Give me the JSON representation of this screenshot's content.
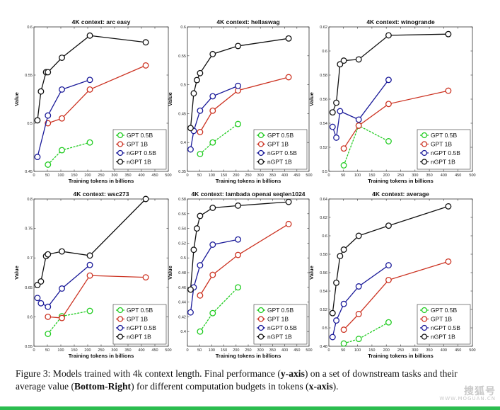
{
  "figure": {
    "caption_parts": [
      {
        "text": "Figure 3:  Models trained with 4k context length. Final performance (",
        "bold": false
      },
      {
        "text": "y-axis",
        "bold": true
      },
      {
        "text": ") on a set of downstream tasks and their average value (",
        "bold": false
      },
      {
        "text": "Bottom-Right",
        "bold": true
      },
      {
        "text": ") for different computation budgets in tokens (",
        "bold": false
      },
      {
        "text": "x-axis",
        "bold": true
      },
      {
        "text": ").",
        "bold": false
      }
    ],
    "watermark": {
      "main": "搜狐号",
      "sub": "WWW.MOGUAN.CN"
    },
    "accent_bar_color": "#2bbd4f"
  },
  "chart_data": [
    {
      "type": "line",
      "title": "4K context:  arc easy",
      "xlabel": "Training tokens in billions",
      "ylabel": "Value",
      "xlim": [
        0,
        500
      ],
      "ylim": [
        0.45,
        0.6
      ],
      "xticks": [
        0,
        50,
        100,
        150,
        200,
        250,
        300,
        350,
        400,
        450,
        500
      ],
      "xtick_labels": [
        "0",
        "50",
        "100",
        "150",
        "200",
        "250",
        "300",
        "350",
        "400",
        "450",
        "500"
      ],
      "yticks": [
        0.45,
        0.5,
        0.55,
        0.6
      ],
      "ytick_labels": [
        "0.45",
        "0.5",
        "0.55",
        "0.6"
      ],
      "legend_position": "bottom-right",
      "series": [
        {
          "name": "GPT 0.5B",
          "color": "#22cc22",
          "dashed": true,
          "x": [
            52,
            104,
            208
          ],
          "y": [
            0.457,
            0.472,
            0.48
          ]
        },
        {
          "name": "GPT 1B",
          "color": "#cc3322",
          "dashed": false,
          "x": [
            52,
            104,
            208,
            416
          ],
          "y": [
            0.5,
            0.505,
            0.535,
            0.56
          ]
        },
        {
          "name": "nGPT 0.5B",
          "color": "#1a1a99",
          "dashed": false,
          "x": [
            13,
            52,
            104,
            208
          ],
          "y": [
            0.465,
            0.508,
            0.535,
            0.545
          ]
        },
        {
          "name": "nGPT 1B",
          "color": "#111111",
          "dashed": false,
          "x": [
            13,
            26,
            45,
            52,
            104,
            208,
            416
          ],
          "y": [
            0.503,
            0.533,
            0.553,
            0.553,
            0.568,
            0.591,
            0.584
          ]
        }
      ]
    },
    {
      "type": "line",
      "title": "4K context:  hellaswag",
      "xlabel": "Training tokens in billions",
      "ylabel": "Value",
      "xlim": [
        0,
        500
      ],
      "ylim": [
        0.35,
        0.6
      ],
      "xticks": [
        0,
        50,
        100,
        150,
        200,
        250,
        300,
        350,
        400,
        450,
        500
      ],
      "xtick_labels": [
        "0",
        "50",
        "100",
        "150",
        "200",
        "250",
        "300",
        "350",
        "400",
        "450",
        "500"
      ],
      "yticks": [
        0.35,
        0.4,
        0.45,
        0.5,
        0.55,
        0.6
      ],
      "ytick_labels": [
        "0.35",
        "0.4",
        "0.45",
        "0.5",
        "0.55",
        "0.6"
      ],
      "legend_position": "bottom-right",
      "series": [
        {
          "name": "GPT 0.5B",
          "color": "#22cc22",
          "dashed": true,
          "x": [
            52,
            104,
            208
          ],
          "y": [
            0.38,
            0.4,
            0.432
          ]
        },
        {
          "name": "GPT 1B",
          "color": "#cc3322",
          "dashed": false,
          "x": [
            52,
            104,
            208,
            416
          ],
          "y": [
            0.418,
            0.455,
            0.49,
            0.513
          ]
        },
        {
          "name": "nGPT 0.5B",
          "color": "#1a1a99",
          "dashed": false,
          "x": [
            13,
            26,
            52,
            104,
            208
          ],
          "y": [
            0.388,
            0.42,
            0.455,
            0.48,
            0.498
          ]
        },
        {
          "name": "nGPT 1B",
          "color": "#111111",
          "dashed": false,
          "x": [
            13,
            26,
            39,
            52,
            104,
            208,
            416
          ],
          "y": [
            0.425,
            0.485,
            0.508,
            0.52,
            0.553,
            0.567,
            0.58
          ]
        }
      ]
    },
    {
      "type": "line",
      "title": "4K context:  winogrande",
      "xlabel": "Training tokens in billions",
      "ylabel": "Value",
      "xlim": [
        0,
        500
      ],
      "ylim": [
        0.5,
        0.62
      ],
      "xticks": [
        0,
        50,
        100,
        150,
        200,
        250,
        300,
        350,
        400,
        450,
        500
      ],
      "xtick_labels": [
        "0",
        "50",
        "100",
        "150",
        "200",
        "250",
        "300",
        "350",
        "400",
        "450",
        "500"
      ],
      "yticks": [
        0.5,
        0.52,
        0.54,
        0.56,
        0.58,
        0.6,
        0.62
      ],
      "ytick_labels": [
        "0.5",
        "0.52",
        "0.54",
        "0.56",
        "0.58",
        "0.6",
        "0.62"
      ],
      "legend_position": "bottom-right",
      "series": [
        {
          "name": "GPT 0.5B",
          "color": "#22cc22",
          "dashed": true,
          "x": [
            52,
            104,
            208
          ],
          "y": [
            0.505,
            0.538,
            0.525
          ]
        },
        {
          "name": "GPT 1B",
          "color": "#cc3322",
          "dashed": false,
          "x": [
            52,
            104,
            208,
            416
          ],
          "y": [
            0.519,
            0.538,
            0.556,
            0.567
          ]
        },
        {
          "name": "nGPT 0.5B",
          "color": "#1a1a99",
          "dashed": false,
          "x": [
            13,
            26,
            39,
            104,
            208
          ],
          "y": [
            0.537,
            0.528,
            0.55,
            0.543,
            0.576
          ]
        },
        {
          "name": "nGPT 1B",
          "color": "#111111",
          "dashed": false,
          "x": [
            13,
            26,
            39,
            52,
            104,
            208,
            416
          ],
          "y": [
            0.549,
            0.557,
            0.589,
            0.592,
            0.593,
            0.613,
            0.614
          ]
        }
      ]
    },
    {
      "type": "line",
      "title": "4K context:  wsc273",
      "xlabel": "Training tokens in billions",
      "ylabel": "Value",
      "xlim": [
        0,
        500
      ],
      "ylim": [
        0.55,
        0.8
      ],
      "xticks": [
        0,
        50,
        100,
        150,
        200,
        250,
        300,
        350,
        400,
        450,
        500
      ],
      "xtick_labels": [
        "0",
        "50",
        "100",
        "150",
        "200",
        "250",
        "300",
        "350",
        "400",
        "450",
        "500"
      ],
      "yticks": [
        0.55,
        0.6,
        0.65,
        0.7,
        0.75,
        0.8
      ],
      "ytick_labels": [
        "0.55",
        "0.6",
        "0.65",
        "0.7",
        "0.75",
        "0.8"
      ],
      "legend_position": "bottom-right",
      "series": [
        {
          "name": "GPT 0.5B",
          "color": "#22cc22",
          "dashed": true,
          "x": [
            52,
            104,
            208
          ],
          "y": [
            0.571,
            0.601,
            0.61
          ]
        },
        {
          "name": "GPT 1B",
          "color": "#cc3322",
          "dashed": false,
          "x": [
            52,
            104,
            208,
            416
          ],
          "y": [
            0.6,
            0.598,
            0.67,
            0.667
          ]
        },
        {
          "name": "nGPT 0.5B",
          "color": "#1a1a99",
          "dashed": false,
          "x": [
            13,
            26,
            52,
            104,
            208
          ],
          "y": [
            0.632,
            0.623,
            0.617,
            0.648,
            0.688
          ]
        },
        {
          "name": "nGPT 1B",
          "color": "#111111",
          "dashed": false,
          "x": [
            13,
            26,
            45,
            52,
            104,
            208,
            416
          ],
          "y": [
            0.654,
            0.66,
            0.703,
            0.706,
            0.711,
            0.704,
            0.8
          ]
        }
      ]
    },
    {
      "type": "line",
      "title": "4K context:  lambada openai seqlen1024",
      "xlabel": "Training tokens in billions",
      "ylabel": "Value",
      "xlim": [
        0,
        500
      ],
      "ylim": [
        0.38,
        0.58
      ],
      "xticks": [
        0,
        50,
        100,
        150,
        200,
        250,
        300,
        350,
        400,
        450,
        500
      ],
      "xtick_labels": [
        "0",
        "50",
        "100",
        "150",
        "200",
        "250",
        "300",
        "350",
        "400",
        "450",
        "500"
      ],
      "yticks": [
        0.4,
        0.42,
        0.44,
        0.46,
        0.48,
        0.5,
        0.52,
        0.54,
        0.56,
        0.58
      ],
      "ytick_labels": [
        "0.4",
        "0.42",
        "0.44",
        "0.46",
        "0.48",
        "0.5",
        "0.52",
        "0.54",
        "0.56",
        "0.58"
      ],
      "legend_position": "bottom-right",
      "series": [
        {
          "name": "GPT 0.5B",
          "color": "#22cc22",
          "dashed": true,
          "x": [
            52,
            104,
            208
          ],
          "y": [
            0.4,
            0.425,
            0.46
          ]
        },
        {
          "name": "GPT 1B",
          "color": "#cc3322",
          "dashed": false,
          "x": [
            52,
            104,
            208,
            416
          ],
          "y": [
            0.449,
            0.477,
            0.504,
            0.546
          ]
        },
        {
          "name": "nGPT 0.5B",
          "color": "#1a1a99",
          "dashed": false,
          "x": [
            13,
            26,
            52,
            104,
            208
          ],
          "y": [
            0.426,
            0.46,
            0.49,
            0.518,
            0.525
          ]
        },
        {
          "name": "nGPT 1B",
          "color": "#111111",
          "dashed": false,
          "x": [
            13,
            26,
            39,
            52,
            104,
            208,
            416
          ],
          "y": [
            0.457,
            0.511,
            0.54,
            0.557,
            0.568,
            0.571,
            0.576
          ]
        }
      ]
    },
    {
      "type": "line",
      "title": "4K context:  average",
      "xlabel": "Training tokens in billions",
      "ylabel": "Value",
      "xlim": [
        0,
        500
      ],
      "ylim": [
        0.48,
        0.64
      ],
      "xticks": [
        0,
        50,
        100,
        150,
        200,
        250,
        300,
        350,
        400,
        450,
        500
      ],
      "xtick_labels": [
        "0",
        "50",
        "100",
        "150",
        "200",
        "250",
        "300",
        "350",
        "400",
        "450",
        "500"
      ],
      "yticks": [
        0.48,
        0.5,
        0.52,
        0.54,
        0.56,
        0.58,
        0.6,
        0.62,
        0.64
      ],
      "ytick_labels": [
        "0.48",
        "0.5",
        "0.52",
        "0.54",
        "0.56",
        "0.58",
        "0.6",
        "0.62",
        "0.64"
      ],
      "legend_position": "bottom-right",
      "series": [
        {
          "name": "GPT 0.5B",
          "color": "#22cc22",
          "dashed": true,
          "x": [
            52,
            104,
            208
          ],
          "y": [
            0.483,
            0.488,
            0.506
          ]
        },
        {
          "name": "GPT 1B",
          "color": "#cc3322",
          "dashed": false,
          "x": [
            52,
            104,
            208,
            416
          ],
          "y": [
            0.498,
            0.515,
            0.552,
            0.572
          ]
        },
        {
          "name": "nGPT 0.5B",
          "color": "#1a1a99",
          "dashed": false,
          "x": [
            13,
            26,
            52,
            104,
            208
          ],
          "y": [
            0.49,
            0.508,
            0.526,
            0.545,
            0.568
          ]
        },
        {
          "name": "nGPT 1B",
          "color": "#111111",
          "dashed": false,
          "x": [
            13,
            26,
            39,
            52,
            104,
            208,
            416
          ],
          "y": [
            0.516,
            0.549,
            0.578,
            0.585,
            0.6,
            0.611,
            0.632
          ]
        }
      ]
    }
  ]
}
